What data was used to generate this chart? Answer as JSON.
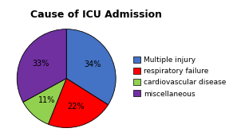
{
  "title": "Cause of ICU Admission",
  "slices": [
    34,
    22,
    11,
    33
  ],
  "labels": [
    "Multiple injury",
    "respiratory failure",
    "cardiovascular disease",
    "miscellaneous"
  ],
  "colors": [
    "#4472C4",
    "#FF0000",
    "#92D050",
    "#7030A0"
  ],
  "pct_labels": [
    "34%",
    "22%",
    "11%",
    "33%"
  ],
  "background_color": "#FFFFFF",
  "title_fontsize": 9,
  "legend_fontsize": 6.5,
  "pct_fontsize": 7
}
